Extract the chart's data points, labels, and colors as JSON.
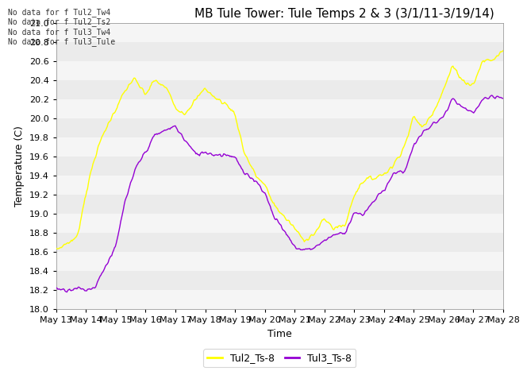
{
  "title": "MB Tule Tower: Tule Temps 2 & 3 (3/1/11-3/19/14)",
  "xlabel": "Time",
  "ylabel": "Temperature (C)",
  "ylim": [
    18.0,
    21.0
  ],
  "yticks": [
    18.0,
    18.2,
    18.4,
    18.6,
    18.8,
    19.0,
    19.2,
    19.4,
    19.6,
    19.8,
    20.0,
    20.2,
    20.4,
    20.6,
    20.8,
    21.0
  ],
  "xtick_labels": [
    "May 13",
    "May 14",
    "May 15",
    "May 16",
    "May 17",
    "May 18",
    "May 19",
    "May 20",
    "May 21",
    "May 22",
    "May 23",
    "May 24",
    "May 25",
    "May 26",
    "May 27",
    "May 28"
  ],
  "line1_color": "#ffff00",
  "line2_color": "#9400D3",
  "line1_label": "Tul2_Ts-8",
  "line2_label": "Tul3_Ts-8",
  "no_data_texts": [
    "No data for f Tul2_Tw4",
    "No data for f Tul2_Ts2",
    "No data for f Tul3_Tw4",
    "No data for f Tul3_Tule"
  ],
  "background_color": "#ffffff",
  "band_color_light": "#ebebeb",
  "band_color_dark": "#f5f5f5",
  "title_fontsize": 11,
  "axis_label_fontsize": 9,
  "tick_fontsize": 8
}
